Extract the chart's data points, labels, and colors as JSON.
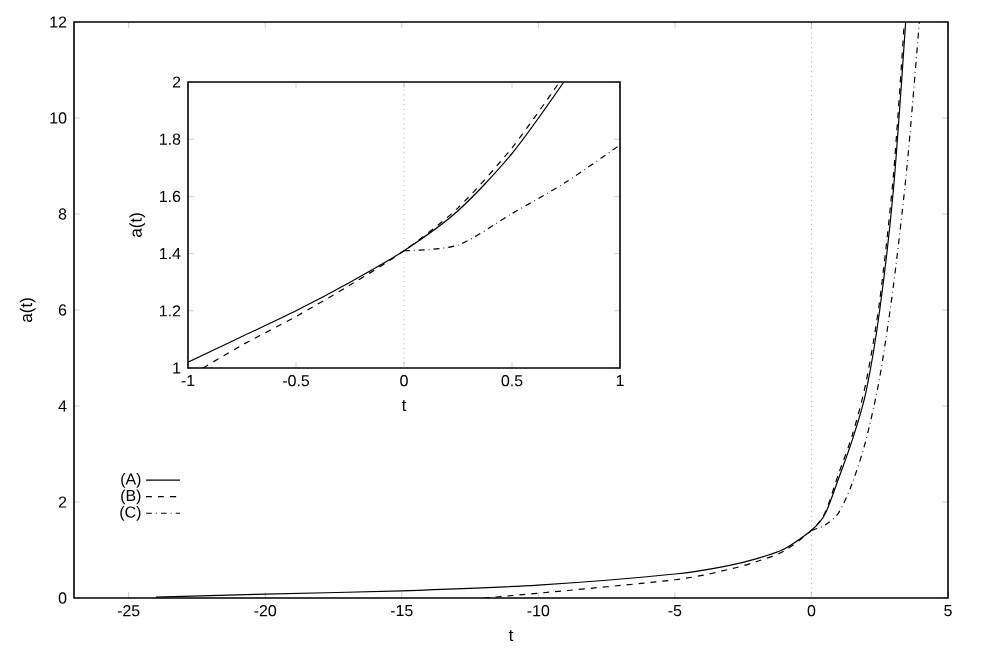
{
  "chart_data": [
    {
      "type": "line",
      "xlabel": "t",
      "ylabel": "a(t)",
      "xlim": [
        -27,
        5
      ],
      "ylim": [
        0,
        12
      ],
      "xticks": [
        -25,
        -20,
        -15,
        -10,
        -5,
        0,
        5
      ],
      "yticks": [
        0,
        2,
        4,
        6,
        8,
        10,
        12
      ],
      "legend": "bottom left",
      "ref_lines": [
        {
          "axis": "x",
          "value": 0,
          "line_style": "dotted",
          "color": "#808080"
        }
      ],
      "series": [
        {
          "name": "(A)",
          "color": "#000000",
          "line_style": "solid",
          "x": [
            -24,
            -20,
            -15,
            -10,
            -5,
            -3,
            -2,
            -1,
            0,
            0.5,
            1,
            1.5,
            2,
            2.5,
            3,
            3.45
          ],
          "values": [
            0.02,
            0.08,
            0.15,
            0.27,
            0.5,
            0.68,
            0.82,
            1.02,
            1.41,
            1.75,
            2.5,
            3.3,
            4.3,
            6.0,
            8.5,
            12
          ]
        },
        {
          "name": "(B)",
          "color": "#000000",
          "line_style": "dashed",
          "x": [
            -12,
            -10,
            -5,
            -3,
            -2,
            -1,
            0,
            0.5,
            1,
            1.5,
            2,
            2.5,
            3,
            3.4
          ],
          "values": [
            0.0,
            0.1,
            0.38,
            0.6,
            0.76,
            0.98,
            1.41,
            1.78,
            2.6,
            3.4,
            4.5,
            6.2,
            8.8,
            12
          ]
        },
        {
          "name": "(C)",
          "color": "#000000",
          "line_style": "dashdot",
          "x": [
            0,
            0.5,
            1,
            1.5,
            2,
            2.5,
            3,
            3.5,
            3.95
          ],
          "values": [
            1.41,
            1.52,
            1.78,
            2.4,
            3.3,
            4.6,
            6.5,
            9.0,
            12
          ]
        }
      ]
    },
    {
      "type": "line",
      "xlabel": "t",
      "ylabel": "a(t)",
      "xlim": [
        -1,
        1
      ],
      "ylim": [
        1,
        2
      ],
      "xticks": [
        -1,
        -0.5,
        0,
        0.5,
        1
      ],
      "yticks": [
        1,
        1.2,
        1.4,
        1.6,
        1.8,
        2
      ],
      "ref_lines": [
        {
          "axis": "x",
          "value": 0,
          "line_style": "dotted",
          "color": "#808080"
        }
      ],
      "series": [
        {
          "color": "#000000",
          "line_style": "solid",
          "x": [
            -1,
            -0.75,
            -0.5,
            -0.25,
            0,
            0.25,
            0.5,
            0.74
          ],
          "values": [
            1.02,
            1.11,
            1.2,
            1.3,
            1.41,
            1.55,
            1.75,
            2
          ]
        },
        {
          "color": "#000000",
          "line_style": "dashed",
          "x": [
            -0.93,
            -0.75,
            -0.5,
            -0.25,
            0,
            0.25,
            0.5,
            0.72
          ],
          "values": [
            1.0,
            1.08,
            1.18,
            1.29,
            1.41,
            1.56,
            1.77,
            2
          ]
        },
        {
          "color": "#000000",
          "line_style": "dashdot",
          "x": [
            0,
            0.25,
            0.5,
            0.75,
            1
          ],
          "values": [
            1.41,
            1.43,
            1.54,
            1.65,
            1.78
          ]
        }
      ]
    }
  ]
}
